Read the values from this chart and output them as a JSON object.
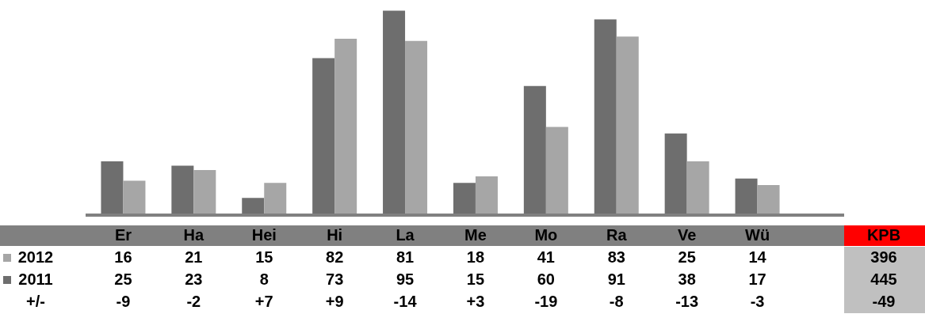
{
  "chart_data": {
    "type": "bar",
    "categories": [
      "Er",
      "Ha",
      "Hei",
      "Hi",
      "La",
      "Me",
      "Mo",
      "Ra",
      "Ve",
      "Wü"
    ],
    "series": [
      {
        "name": "2011",
        "color": "#6e6e6e",
        "values": [
          25,
          23,
          8,
          73,
          95,
          15,
          60,
          91,
          38,
          17
        ]
      },
      {
        "name": "2012",
        "color": "#a6a6a6",
        "values": [
          16,
          21,
          15,
          82,
          81,
          18,
          41,
          83,
          25,
          14
        ]
      }
    ],
    "ylim": [
      0,
      100
    ],
    "data_labels": true,
    "grid": false,
    "legend": "bottom left",
    "tick_labels": "x",
    "annotations": [
      "KPB",
      "396",
      "445",
      "-49",
      "+/-",
      "-9",
      "-2",
      "+7",
      "+9",
      "-14",
      "+3",
      "-19",
      "-8",
      "-13",
      "-3"
    ]
  }
}
